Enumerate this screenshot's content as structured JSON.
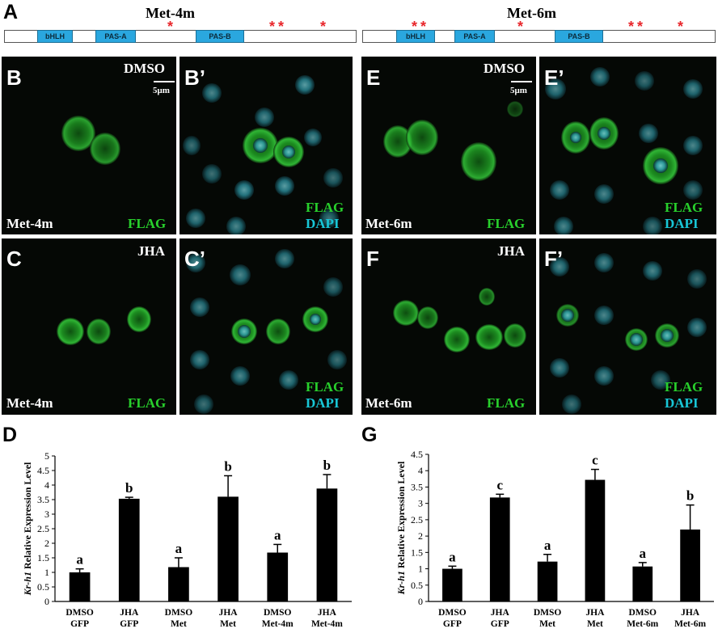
{
  "figure": {
    "panel_labels": {
      "A": "A",
      "B": "B",
      "B2": "B’",
      "C": "C",
      "C2": "C’",
      "D": "D",
      "E": "E",
      "E2": "E’",
      "F": "F",
      "F2": "F’",
      "G": "G"
    },
    "constructs": [
      {
        "title": "Met-4m",
        "domains": [
          "bHLH",
          "PAS-A",
          "PAS-B"
        ],
        "mutation_marker": "*"
      },
      {
        "title": "Met-6m",
        "domains": [
          "bHLH",
          "PAS-A",
          "PAS-B"
        ],
        "mutation_marker": "*"
      }
    ],
    "micrographs": {
      "B": {
        "treatment": "DMSO",
        "scale": "5μm",
        "construct": "Met-4m",
        "stain": "FLAG"
      },
      "B2": {
        "stain1": "FLAG",
        "stain2": "DAPI"
      },
      "C": {
        "treatment": "JHA",
        "construct": "Met-4m",
        "stain": "FLAG"
      },
      "C2": {
        "stain1": "FLAG",
        "stain2": "DAPI"
      },
      "E": {
        "treatment": "DMSO",
        "scale": "5μm",
        "construct": "Met-6m",
        "stain": "FLAG"
      },
      "E2": {
        "stain1": "FLAG",
        "stain2": "DAPI"
      },
      "F": {
        "treatment": "JHA",
        "construct": "Met-6m",
        "stain": "FLAG"
      },
      "F2": {
        "stain1": "FLAG",
        "stain2": "DAPI"
      }
    },
    "colors": {
      "flag_green": "#28d02c",
      "dapi_cyan": "#18c6d6",
      "domain_blue": "#2aa7df",
      "mutation_red": "#e8262b"
    }
  },
  "chart_data": [
    {
      "panel": "D",
      "type": "bar",
      "ylabel_italic": "Kr-h1",
      "ylabel_rest": "Relative Expression Level",
      "categories": [
        [
          "DMSO",
          "GFP"
        ],
        [
          "JHA",
          "GFP"
        ],
        [
          "DMSO",
          "Met"
        ],
        [
          "JHA",
          "Met"
        ],
        [
          "DMSO",
          "Met-4m"
        ],
        [
          "JHA",
          "Met-4m"
        ]
      ],
      "values": [
        1.0,
        3.53,
        1.18,
        3.6,
        1.68,
        3.88
      ],
      "errors": [
        0.12,
        0.05,
        0.32,
        0.72,
        0.28,
        0.48
      ],
      "significance": [
        "a",
        "b",
        "a",
        "b",
        "a",
        "b"
      ],
      "ylim": [
        0,
        5
      ],
      "yticks": [
        "0",
        "0.5",
        "1",
        "1.5",
        "2",
        "2.5",
        "3",
        "3.5",
        "4",
        "4.5",
        "5"
      ]
    },
    {
      "panel": "G",
      "type": "bar",
      "ylabel_italic": "Kr-h1",
      "ylabel_rest": "Relative Expression Level",
      "categories": [
        [
          "DMSO",
          "GFP"
        ],
        [
          "JHA",
          "GFP"
        ],
        [
          "DMSO",
          "Met"
        ],
        [
          "JHA",
          "Met"
        ],
        [
          "DMSO",
          "Met-6m"
        ],
        [
          "JHA",
          "Met-6m"
        ]
      ],
      "values": [
        1.0,
        3.18,
        1.22,
        3.72,
        1.07,
        2.2
      ],
      "errors": [
        0.08,
        0.1,
        0.22,
        0.32,
        0.12,
        0.75
      ],
      "significance": [
        "a",
        "c",
        "a",
        "c",
        "a",
        "b"
      ],
      "ylim": [
        0,
        4.5
      ],
      "yticks": [
        "0",
        "0.5",
        "1",
        "1.5",
        "2",
        "2.5",
        "3",
        "3.5",
        "4",
        "4.5"
      ]
    }
  ]
}
